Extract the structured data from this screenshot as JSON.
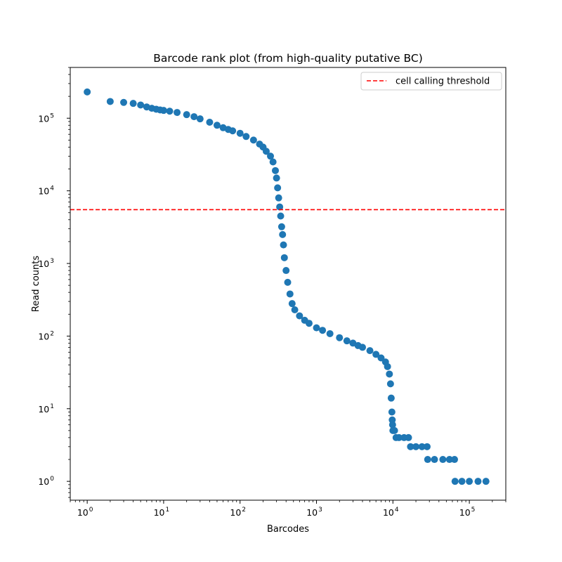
{
  "chart_data": {
    "type": "scatter",
    "title": "Barcode rank plot (from high-quality putative BC)",
    "xlabel": "Barcodes",
    "ylabel": "Read counts",
    "xscale": "log",
    "yscale": "log",
    "xlim": [
      0.6,
      300000
    ],
    "ylim": [
      0.55,
      500000
    ],
    "x_ticks": [
      {
        "value": 1,
        "base": "10",
        "exp": "0"
      },
      {
        "value": 10,
        "base": "10",
        "exp": "1"
      },
      {
        "value": 100,
        "base": "10",
        "exp": "2"
      },
      {
        "value": 1000,
        "base": "10",
        "exp": "3"
      },
      {
        "value": 10000,
        "base": "10",
        "exp": "4"
      },
      {
        "value": 100000,
        "base": "10",
        "exp": "5"
      }
    ],
    "y_ticks": [
      {
        "value": 1,
        "base": "10",
        "exp": "0"
      },
      {
        "value": 10,
        "base": "10",
        "exp": "1"
      },
      {
        "value": 100,
        "base": "10",
        "exp": "2"
      },
      {
        "value": 1000,
        "base": "10",
        "exp": "3"
      },
      {
        "value": 10000,
        "base": "10",
        "exp": "4"
      },
      {
        "value": 100000,
        "base": "10",
        "exp": "5"
      }
    ],
    "series_color": "#1f77b4",
    "threshold": {
      "label": "cell calling threshold",
      "value": 5500,
      "color": "#ff0000",
      "style": "dashed"
    },
    "legend_position": "top-right",
    "grid": false,
    "points": [
      [
        1,
        230000
      ],
      [
        2,
        170000
      ],
      [
        3,
        165000
      ],
      [
        4,
        160000
      ],
      [
        5,
        152000
      ],
      [
        6,
        143000
      ],
      [
        7,
        137000
      ],
      [
        8,
        133000
      ],
      [
        9,
        130000
      ],
      [
        10,
        128000
      ],
      [
        12,
        125000
      ],
      [
        15,
        120000
      ],
      [
        20,
        112000
      ],
      [
        25,
        105000
      ],
      [
        30,
        98000
      ],
      [
        40,
        88000
      ],
      [
        50,
        80000
      ],
      [
        60,
        74000
      ],
      [
        70,
        70000
      ],
      [
        80,
        67000
      ],
      [
        100,
        62000
      ],
      [
        120,
        56000
      ],
      [
        150,
        50000
      ],
      [
        180,
        44000
      ],
      [
        200,
        40000
      ],
      [
        220,
        35000
      ],
      [
        250,
        30000
      ],
      [
        270,
        25000
      ],
      [
        290,
        19000
      ],
      [
        300,
        15000
      ],
      [
        310,
        11000
      ],
      [
        320,
        8000
      ],
      [
        330,
        6000
      ],
      [
        340,
        4500
      ],
      [
        350,
        3200
      ],
      [
        360,
        2500
      ],
      [
        370,
        1800
      ],
      [
        380,
        1200
      ],
      [
        400,
        800
      ],
      [
        420,
        550
      ],
      [
        450,
        380
      ],
      [
        480,
        280
      ],
      [
        520,
        230
      ],
      [
        600,
        190
      ],
      [
        700,
        165
      ],
      [
        800,
        150
      ],
      [
        1000,
        130
      ],
      [
        1200,
        120
      ],
      [
        1500,
        108
      ],
      [
        2000,
        95
      ],
      [
        2500,
        86
      ],
      [
        3000,
        80
      ],
      [
        3500,
        74
      ],
      [
        4000,
        70
      ],
      [
        5000,
        63
      ],
      [
        6000,
        56
      ],
      [
        7000,
        50
      ],
      [
        8000,
        44
      ],
      [
        8500,
        38
      ],
      [
        9000,
        30
      ],
      [
        9300,
        22
      ],
      [
        9500,
        14
      ],
      [
        9700,
        9
      ],
      [
        9800,
        7
      ],
      [
        9900,
        6
      ],
      [
        10000,
        5
      ],
      [
        10500,
        5
      ],
      [
        11000,
        4
      ],
      [
        12000,
        4
      ],
      [
        14000,
        4
      ],
      [
        16000,
        4
      ],
      [
        17000,
        3
      ],
      [
        20000,
        3
      ],
      [
        24000,
        3
      ],
      [
        28000,
        3
      ],
      [
        28500,
        2
      ],
      [
        35000,
        2
      ],
      [
        45000,
        2
      ],
      [
        55000,
        2
      ],
      [
        64000,
        2
      ],
      [
        65000,
        1
      ],
      [
        80000,
        1
      ],
      [
        100000,
        1
      ],
      [
        130000,
        1
      ],
      [
        165000,
        1
      ]
    ]
  }
}
